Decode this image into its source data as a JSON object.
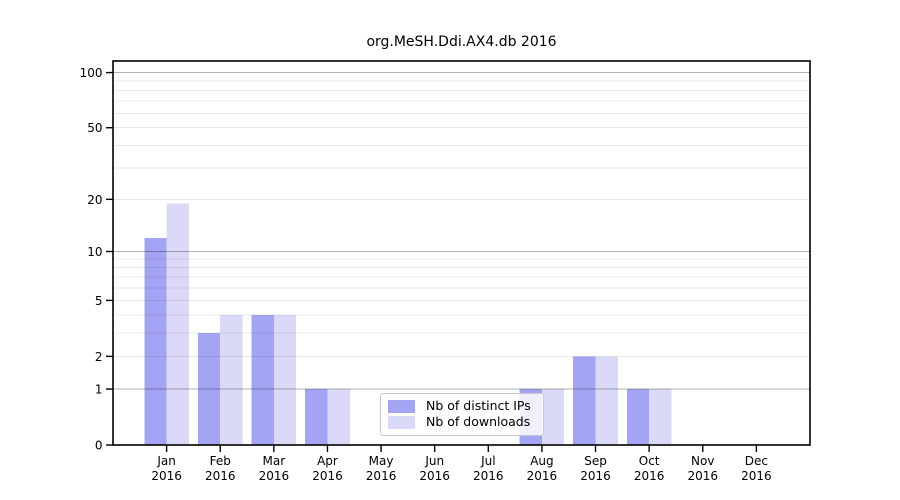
{
  "chart_data": {
    "type": "bar",
    "title": "org.MeSH.Ddi.AX4.db 2016",
    "categories": [
      {
        "line1": "Jan",
        "line2": "2016"
      },
      {
        "line1": "Feb",
        "line2": "2016"
      },
      {
        "line1": "Mar",
        "line2": "2016"
      },
      {
        "line1": "Apr",
        "line2": "2016"
      },
      {
        "line1": "May",
        "line2": "2016"
      },
      {
        "line1": "Jun",
        "line2": "2016"
      },
      {
        "line1": "Jul",
        "line2": "2016"
      },
      {
        "line1": "Aug",
        "line2": "2016"
      },
      {
        "line1": "Sep",
        "line2": "2016"
      },
      {
        "line1": "Oct",
        "line2": "2016"
      },
      {
        "line1": "Nov",
        "line2": "2016"
      },
      {
        "line1": "Dec",
        "line2": "2016"
      }
    ],
    "series": [
      {
        "name": "Nb of distinct IPs",
        "color": "#a4a4f4",
        "values": [
          12,
          3,
          4,
          1,
          0,
          0,
          0,
          1,
          2,
          1,
          0,
          0
        ]
      },
      {
        "name": "Nb of downloads",
        "color": "#dadaf8",
        "values": [
          19,
          4,
          4,
          1,
          0,
          0,
          0,
          1,
          2,
          1,
          0,
          0
        ]
      }
    ],
    "xlabel": "",
    "ylabel": "",
    "y_axis": {
      "scale": "log10(1+value)",
      "tick_values": [
        0,
        1,
        2,
        5,
        10,
        20,
        50,
        100
      ],
      "major_gridlines": [
        1,
        10,
        100
      ],
      "minor_gridlines": [
        2,
        3,
        4,
        5,
        6,
        7,
        8,
        9,
        20,
        30,
        40,
        50,
        60,
        70,
        80,
        90
      ],
      "ylim": [
        0,
        116
      ]
    },
    "legend_position": "lower center",
    "grid": "on"
  },
  "colors": {
    "background": "#ffffff",
    "spine": "#000000",
    "major_grid": "rgba(0,0,0,0.30)",
    "minor_grid": "rgba(0,0,0,0.09)",
    "legend_border": "#c9c9c9",
    "legend_background": "rgba(255,255,255,0.82)"
  }
}
